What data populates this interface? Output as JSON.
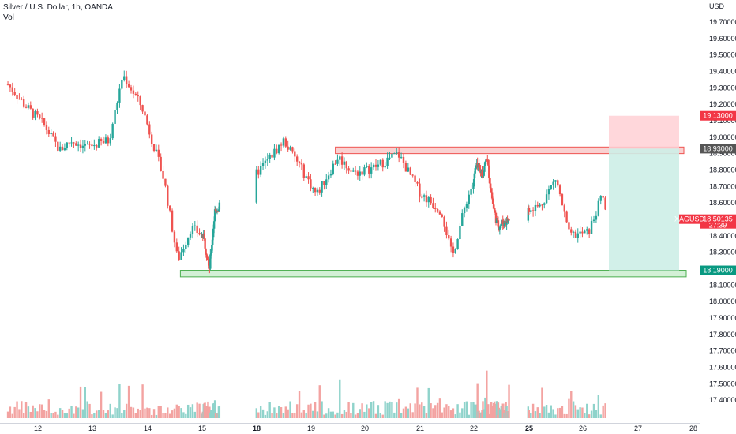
{
  "header": {
    "title": "Silver / U.S. Dollar, 1h, OANDA",
    "volume_label": "Vol"
  },
  "price_axis": {
    "currency": "USD",
    "ticks": [
      "19.70000",
      "19.60000",
      "19.50000",
      "19.40000",
      "19.30000",
      "19.20000",
      "19.10000",
      "19.00000",
      "18.90000",
      "18.80000",
      "18.70000",
      "18.60000",
      "18.40000",
      "18.30000",
      "18.10000",
      "18.00000",
      "17.90000",
      "17.80000",
      "17.70000",
      "17.60000",
      "17.50000",
      "17.40000"
    ]
  },
  "time_axis": {
    "labels": [
      {
        "text": "12",
        "bold": false
      },
      {
        "text": "13",
        "bold": false
      },
      {
        "text": "14",
        "bold": false
      },
      {
        "text": "15",
        "bold": false
      },
      {
        "text": "18",
        "bold": true
      },
      {
        "text": "19",
        "bold": false
      },
      {
        "text": "20",
        "bold": false
      },
      {
        "text": "21",
        "bold": false
      },
      {
        "text": "22",
        "bold": false
      },
      {
        "text": "25",
        "bold": true
      },
      {
        "text": "26",
        "bold": false
      },
      {
        "text": "27",
        "bold": false
      },
      {
        "text": "28",
        "bold": false
      }
    ]
  },
  "price_badges": {
    "target": {
      "value": "19.13000",
      "color": "#f23645"
    },
    "entry": {
      "value": "18.93000",
      "color": "#555555"
    },
    "last_price": {
      "symbol": "XAGUSD",
      "value": "18.50135",
      "countdown": "27:39",
      "color": "#f23645"
    },
    "stop": {
      "value": "18.19000",
      "color": "#089981"
    }
  },
  "colors": {
    "up": "#26a69a",
    "down": "#ef5350",
    "volume_up": "#8fd3cb",
    "volume_down": "#f3a3a1",
    "resistance": "#f7c6c6",
    "support": "#d3f0d6",
    "target_zone": "#ffd0d5",
    "stop_zone": "#cdeee7"
  },
  "chart_data": {
    "type": "candlestick",
    "title": "Silver / U.S. Dollar, 1h, OANDA",
    "instrument": "XAGUSD",
    "ylabel": "USD",
    "ylim": [
      18.0,
      19.8
    ],
    "resistance_zone": [
      18.9,
      18.94
    ],
    "support_zone": [
      18.15,
      18.19
    ],
    "position": {
      "target": 19.13,
      "entry": 18.93,
      "stop": 18.19
    },
    "last_price": 18.50135,
    "price_path": [
      {
        "day": 11.45,
        "price": 19.32
      },
      {
        "day": 11.8,
        "price": 19.18
      },
      {
        "day": 12.1,
        "price": 19.08
      },
      {
        "day": 12.4,
        "price": 18.92
      },
      {
        "day": 12.6,
        "price": 18.98
      },
      {
        "day": 12.9,
        "price": 18.94
      },
      {
        "day": 13.3,
        "price": 18.98
      },
      {
        "day": 13.55,
        "price": 19.38
      },
      {
        "day": 13.9,
        "price": 19.18
      },
      {
        "day": 14.3,
        "price": 18.74
      },
      {
        "day": 14.55,
        "price": 18.25
      },
      {
        "day": 14.8,
        "price": 18.45
      },
      {
        "day": 15.1,
        "price": 18.38
      },
      {
        "day": 15.4,
        "price": 18.2
      },
      {
        "day": 15.7,
        "price": 18.55
      },
      {
        "day": 18.0,
        "price": 18.78
      },
      {
        "day": 18.5,
        "price": 18.98
      },
      {
        "day": 18.8,
        "price": 18.82
      },
      {
        "day": 19.1,
        "price": 18.65
      },
      {
        "day": 19.5,
        "price": 18.88
      },
      {
        "day": 19.8,
        "price": 18.78
      },
      {
        "day": 20.2,
        "price": 18.82
      },
      {
        "day": 20.6,
        "price": 18.9
      },
      {
        "day": 21.0,
        "price": 18.66
      },
      {
        "day": 21.4,
        "price": 18.55
      },
      {
        "day": 21.6,
        "price": 18.27
      },
      {
        "day": 21.85,
        "price": 18.6
      },
      {
        "day": 22.1,
        "price": 18.82
      },
      {
        "day": 22.5,
        "price": 18.78
      },
      {
        "day": 22.7,
        "price": 18.88
      },
      {
        "day": 23.05,
        "price": 18.58
      },
      {
        "day": 23.3,
        "price": 18.46
      },
      {
        "day": 25.2,
        "price": 18.58
      },
      {
        "day": 25.5,
        "price": 18.75
      },
      {
        "day": 25.75,
        "price": 18.4
      },
      {
        "day": 26.1,
        "price": 18.42
      },
      {
        "day": 26.25,
        "price": 18.55
      },
      {
        "day": 26.35,
        "price": 18.65
      },
      {
        "day": 26.45,
        "price": 18.5
      }
    ]
  }
}
